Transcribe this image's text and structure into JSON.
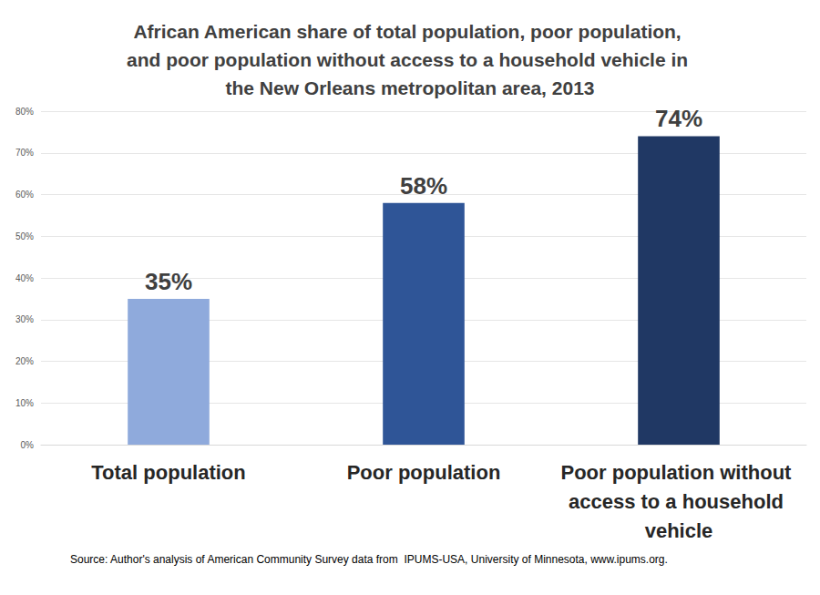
{
  "chart_data": {
    "type": "bar",
    "title": "African American share of total population, poor population, and poor population without access to a household vehicle in the New Orleans metropolitan area, 2013",
    "categories": [
      "Total population",
      "Poor population",
      "Poor population without access to a household vehicle"
    ],
    "values": [
      35,
      58,
      74
    ],
    "value_labels": [
      "35%",
      "58%",
      "74%"
    ],
    "colors": [
      "#8faadc",
      "#2f5597",
      "#203864"
    ],
    "ylim": [
      0,
      80
    ],
    "yticks": [
      {
        "value": 0,
        "label": "0%"
      },
      {
        "value": 10,
        "label": "10%"
      },
      {
        "value": 20,
        "label": "20%"
      },
      {
        "value": 30,
        "label": "30%"
      },
      {
        "value": 40,
        "label": "40%"
      },
      {
        "value": 50,
        "label": "50%"
      },
      {
        "value": 60,
        "label": "60%"
      },
      {
        "value": 70,
        "label": "70%"
      },
      {
        "value": 80,
        "label": "80%"
      }
    ],
    "grid": true,
    "data_labels": true,
    "source": "Source: Author's analysis of American Community Survey data from  IPUMS-USA, University of Minnesota, www.ipums.org."
  }
}
